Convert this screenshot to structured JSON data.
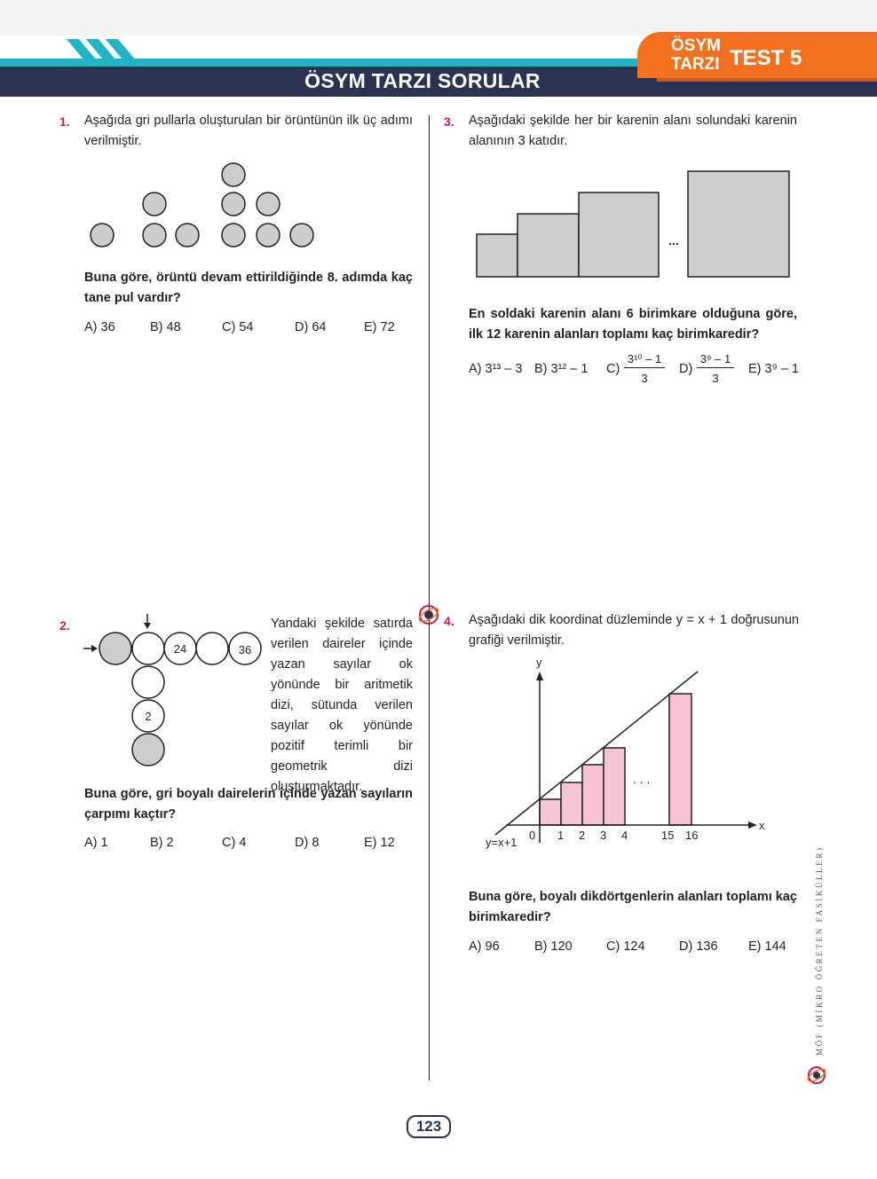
{
  "header": {
    "section_title": "ÖSYM TARZI SORULAR",
    "badge_line1": "ÖSYM",
    "badge_line2": "TARZI",
    "test_label": "TEST 5",
    "colors": {
      "teal": "#23b3c7",
      "navy": "#2b3350",
      "orange": "#f37021",
      "question_number": "#c2185b",
      "pink_fill": "#f6c3d7",
      "gray_fill": "#cdcdcd"
    }
  },
  "q1": {
    "number": "1.",
    "text": "Aşağıda gri pullarla oluşturulan bir örüntünün ilk üç adımı verilmiştir.",
    "question": "Buna göre, örüntü devam ettirildiğinde 8. adımda kaç tane pul vardır?",
    "options": [
      "A) 36",
      "B) 48",
      "C) 54",
      "D) 64",
      "E) 72"
    ]
  },
  "q2": {
    "number": "2.",
    "text": "Yandaki şekilde satırda verilen daireler içinde yazan sayılar ok yönünde bir aritmetik dizi, sütunda verilen sayılar ok yönünde pozitif terimli bir geometrik dizi oluşturmaktadır.",
    "figure_labels": [
      "24",
      "36",
      "2"
    ],
    "question": "Buna göre, gri boyalı dairelerin içinde yazan sayıların çarpımı kaçtır?",
    "options": [
      "A) 1",
      "B) 2",
      "C) 4",
      "D) 8",
      "E) 12"
    ]
  },
  "q3": {
    "number": "3.",
    "text": "Aşağıdaki şekilde her bir karenin alanı solundaki karenin alanının 3 katıdır.",
    "dots": "...",
    "question": "En soldaki karenin alanı 6 birimkare olduğuna göre, ilk 12 karenin alanları toplamı kaç birimkaredir?",
    "options": {
      "a": "A) 3¹³ – 3",
      "b": "B) 3¹² – 1",
      "c_label": "C)",
      "c_num": "3¹⁰ – 1",
      "c_den": "3",
      "d_label": "D)",
      "d_num": "3⁹ – 1",
      "d_den": "3",
      "e": "E) 3⁹ – 1"
    }
  },
  "q4": {
    "number": "4.",
    "text": "Aşağıdaki dik koordinat düzleminde y = x + 1 doğrusunun grafiği verilmiştir.",
    "graph": {
      "y_label": "y",
      "x_label": "x",
      "line_label": "y=x+1",
      "x_ticks": [
        "0",
        "1",
        "2",
        "3",
        "4",
        "15",
        "16"
      ],
      "dots": ". . ."
    },
    "question": "Buna göre, boyalı dikdörtgenlerin alanları toplamı kaç birimkaredir?",
    "options": [
      "A) 96",
      "B) 120",
      "C) 124",
      "D) 136",
      "E) 144"
    ]
  },
  "footer": {
    "page_number": "123",
    "side_text": "MÖF (MİKRO ÖĞRETEN FASİKÜLLER)"
  }
}
